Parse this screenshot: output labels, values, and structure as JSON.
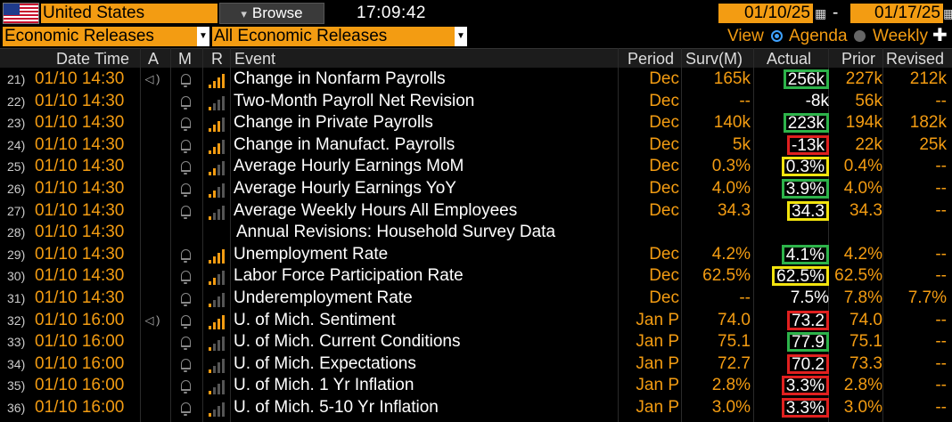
{
  "header": {
    "country": "United States",
    "browse_label": "Browse",
    "time": "17:09:42",
    "date_from": "01/10/25",
    "date_to": "01/17/25",
    "date_separator": "-",
    "filter1": "Economic Releases",
    "filter2": "All Economic Releases",
    "view_label": "View",
    "view_agenda": "Agenda",
    "view_weekly": "Weekly",
    "view_selected": "Agenda"
  },
  "columns": {
    "date_time": "Date Time",
    "a": "A",
    "m": "M",
    "r": "R",
    "event": "Event",
    "period": "Period",
    "surv": "Surv(M)",
    "actual": "Actual",
    "prior": "Prior",
    "revised": "Revised"
  },
  "colors": {
    "orange": "#f39c12",
    "green_box": "#2db34a",
    "yellow_box": "#f2e30e",
    "red_box": "#e0201f",
    "signal_on": "#f39c12",
    "signal_off": "#555555"
  },
  "rows": [
    {
      "num": "21)",
      "dt": "01/10 14:30",
      "a_icon": "speaker-icon",
      "bell": true,
      "signal": 4,
      "event": "Change in Nonfarm Payrolls",
      "period": "Dec",
      "surv": "165k",
      "actual": "256k",
      "box": "green",
      "prior": "227k",
      "revised": "212k"
    },
    {
      "num": "22)",
      "dt": "01/10 14:30",
      "a_icon": "",
      "bell": true,
      "signal": 1,
      "event": "Two-Month Payroll Net Revision",
      "period": "Dec",
      "surv": "--",
      "actual": "-8k",
      "box": "",
      "prior": "56k",
      "revised": "--"
    },
    {
      "num": "23)",
      "dt": "01/10 14:30",
      "a_icon": "",
      "bell": true,
      "signal": 3,
      "event": "Change in Private Payrolls",
      "period": "Dec",
      "surv": "140k",
      "actual": "223k",
      "box": "green",
      "prior": "194k",
      "revised": "182k"
    },
    {
      "num": "24)",
      "dt": "01/10 14:30",
      "a_icon": "",
      "bell": true,
      "signal": 3,
      "event": "Change in Manufact. Payrolls",
      "period": "Dec",
      "surv": "5k",
      "actual": "-13k",
      "box": "red",
      "prior": "22k",
      "revised": "25k"
    },
    {
      "num": "25)",
      "dt": "01/10 14:30",
      "a_icon": "",
      "bell": true,
      "signal": 2,
      "event": "Average Hourly Earnings MoM",
      "period": "Dec",
      "surv": "0.3%",
      "actual": "0.3%",
      "box": "yellow",
      "prior": "0.4%",
      "revised": "--"
    },
    {
      "num": "26)",
      "dt": "01/10 14:30",
      "a_icon": "",
      "bell": true,
      "signal": 2,
      "event": "Average Hourly Earnings YoY",
      "period": "Dec",
      "surv": "4.0%",
      "actual": "3.9%",
      "box": "green",
      "prior": "4.0%",
      "revised": "--"
    },
    {
      "num": "27)",
      "dt": "01/10 14:30",
      "a_icon": "",
      "bell": true,
      "signal": 1,
      "event": "Average Weekly Hours All Employees",
      "period": "Dec",
      "surv": "34.3",
      "actual": "34.3",
      "box": "yellow",
      "prior": "34.3",
      "revised": "--"
    },
    {
      "num": "28)",
      "dt": "01/10 14:30",
      "a_icon": "",
      "bell": false,
      "signal": 0,
      "event": "Annual Revisions: Household Survey Data",
      "period": "",
      "surv": "",
      "actual": "",
      "box": "",
      "prior": "",
      "revised": "",
      "is_header": true
    },
    {
      "num": "29)",
      "dt": "01/10 14:30",
      "a_icon": "",
      "bell": true,
      "signal": 4,
      "event": "Unemployment Rate",
      "period": "Dec",
      "surv": "4.2%",
      "actual": "4.1%",
      "box": "green",
      "prior": "4.2%",
      "revised": "--"
    },
    {
      "num": "30)",
      "dt": "01/10 14:30",
      "a_icon": "",
      "bell": true,
      "signal": 2,
      "event": "Labor Force Participation Rate",
      "period": "Dec",
      "surv": "62.5%",
      "actual": "62.5%",
      "box": "yellow",
      "prior": "62.5%",
      "revised": "--"
    },
    {
      "num": "31)",
      "dt": "01/10 14:30",
      "a_icon": "",
      "bell": true,
      "signal": 1,
      "event": "Underemployment Rate",
      "period": "Dec",
      "surv": "--",
      "actual": "7.5%",
      "box": "",
      "prior": "7.8%",
      "revised": "7.7%"
    },
    {
      "num": "32)",
      "dt": "01/10 16:00",
      "a_icon": "speaker-icon",
      "bell": true,
      "signal": 4,
      "event": "U. of Mich. Sentiment",
      "period": "Jan P",
      "surv": "74.0",
      "actual": "73.2",
      "box": "red",
      "prior": "74.0",
      "revised": "--"
    },
    {
      "num": "33)",
      "dt": "01/10 16:00",
      "a_icon": "",
      "bell": true,
      "signal": 1,
      "event": "U. of Mich. Current Conditions",
      "period": "Jan P",
      "surv": "75.1",
      "actual": "77.9",
      "box": "green",
      "prior": "75.1",
      "revised": "--"
    },
    {
      "num": "34)",
      "dt": "01/10 16:00",
      "a_icon": "",
      "bell": true,
      "signal": 1,
      "event": "U. of Mich. Expectations",
      "period": "Jan P",
      "surv": "72.7",
      "actual": "70.2",
      "box": "red",
      "prior": "73.3",
      "revised": "--"
    },
    {
      "num": "35)",
      "dt": "01/10 16:00",
      "a_icon": "",
      "bell": true,
      "signal": 1,
      "event": "U. of Mich. 1 Yr Inflation",
      "period": "Jan P",
      "surv": "2.8%",
      "actual": "3.3%",
      "box": "red",
      "prior": "2.8%",
      "revised": "--"
    },
    {
      "num": "36)",
      "dt": "01/10 16:00",
      "a_icon": "",
      "bell": true,
      "signal": 1,
      "event": "U. of Mich. 5-10 Yr Inflation",
      "period": "Jan P",
      "surv": "3.0%",
      "actual": "3.3%",
      "box": "red",
      "prior": "3.0%",
      "revised": "--"
    }
  ]
}
